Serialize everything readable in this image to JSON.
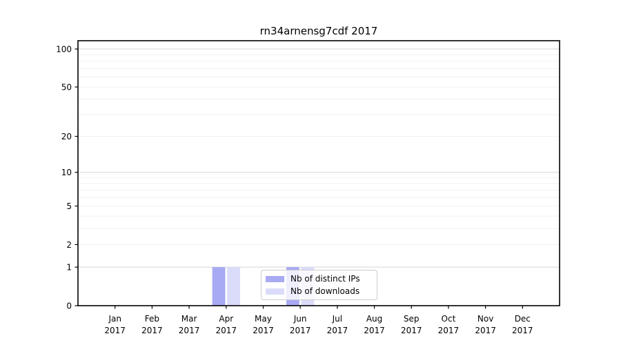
{
  "title": "rn34arnensg7cdf 2017",
  "chart_data": {
    "type": "bar",
    "title": "rn34arnensg7cdf 2017",
    "categories": [
      "Jan",
      "Feb",
      "Mar",
      "Apr",
      "May",
      "Jun",
      "Jul",
      "Aug",
      "Sep",
      "Oct",
      "Nov",
      "Dec"
    ],
    "category_year": "2017",
    "series": [
      {
        "name": "Nb of distinct IPs",
        "color": "#a8aaf3",
        "values": [
          0,
          0,
          0,
          1,
          0,
          1,
          0,
          0,
          0,
          0,
          0,
          0
        ]
      },
      {
        "name": "Nb of downloads",
        "color": "#dbdcf9",
        "values": [
          0,
          0,
          0,
          1,
          0,
          1,
          0,
          0,
          0,
          0,
          0,
          0
        ]
      }
    ],
    "xlabel": "",
    "ylabel": "",
    "y_scale": "log1p",
    "ylim": [
      0,
      116
    ],
    "y_axis": {
      "labeled_ticks": [
        0,
        1,
        2,
        5,
        10,
        20,
        50,
        100
      ],
      "major_grid": [
        1,
        10,
        100
      ],
      "minor_grid": [
        2,
        3,
        4,
        5,
        6,
        7,
        8,
        9,
        20,
        30,
        40,
        50,
        60,
        70,
        80,
        90
      ]
    },
    "grid": "on",
    "legend_position": "lower center inside",
    "colors": {
      "major_grid": "#d5d5d5",
      "minor_grid": "#f0f0f0",
      "spine": "#000000",
      "text": "#000000"
    }
  }
}
